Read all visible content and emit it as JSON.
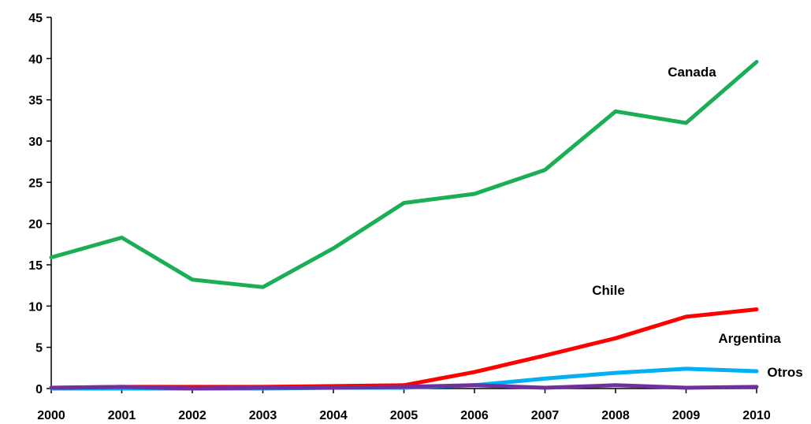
{
  "chart_data": {
    "type": "line",
    "title": "",
    "xlabel": "",
    "ylabel": "",
    "x": [
      "2000",
      "2001",
      "2002",
      "2003",
      "2004",
      "2005",
      "2006",
      "2007",
      "2008",
      "2009",
      "2010"
    ],
    "ylim": [
      0,
      45
    ],
    "yticks": [
      "0",
      "5",
      "10",
      "15",
      "20",
      "25",
      "30",
      "35",
      "40",
      "45"
    ],
    "grid": false,
    "legend": "none",
    "series": [
      {
        "name": "Canada",
        "color": "#1aaf54",
        "values": [
          15.9,
          18.3,
          13.2,
          12.3,
          17.0,
          22.5,
          23.6,
          26.5,
          33.6,
          32.2,
          39.6
        ]
      },
      {
        "name": "Chile",
        "color": "#ff0000",
        "values": [
          0.1,
          0.2,
          0.2,
          0.2,
          0.3,
          0.4,
          2.0,
          4.0,
          6.1,
          8.7,
          9.6
        ]
      },
      {
        "name": "Argentina",
        "color": "#00b0f0",
        "values": [
          0.0,
          0.0,
          0.0,
          0.0,
          0.1,
          0.1,
          0.4,
          1.2,
          1.9,
          2.4,
          2.1
        ]
      },
      {
        "name": "Otros",
        "color": "#7030a0",
        "values": [
          0.1,
          0.2,
          0.0,
          0.1,
          0.1,
          0.2,
          0.4,
          0.1,
          0.4,
          0.1,
          0.2
        ]
      }
    ]
  }
}
